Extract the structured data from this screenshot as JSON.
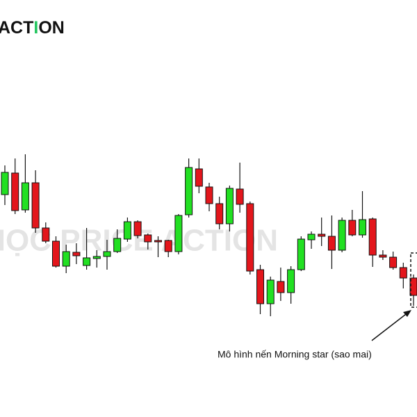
{
  "logo": {
    "parts": [
      "ACT",
      "I",
      "ON"
    ]
  },
  "watermark": "HỌC PRICE ACTION",
  "chart_data": {
    "type": "candlestick",
    "annotation": "Mô hình nến Morning star (sao mai)",
    "up_color": "#22e022",
    "down_color": "#e3161c",
    "open": [
      320,
      351,
      298,
      337,
      272,
      253,
      217,
      237,
      218,
      228,
      231,
      238,
      256,
      281,
      262,
      254,
      254,
      238,
      291,
      357,
      331,
      307,
      278,
      328,
      307,
      212,
      163,
      195,
      179,
      212,
      255,
      263,
      260,
      240,
      283,
      262,
      285,
      233,
      230,
      215,
      200
    ],
    "high": [
      362,
      372,
      378,
      355,
      280,
      260,
      248,
      250,
      272,
      240,
      255,
      270,
      287,
      283,
      264,
      260,
      255,
      292,
      372,
      372,
      337,
      317,
      333,
      366,
      310,
      219,
      202,
      215,
      217,
      260,
      267,
      287,
      290,
      287,
      298,
      325,
      287,
      240,
      238,
      222,
      205
    ],
    "low": [
      305,
      292,
      294,
      265,
      250,
      215,
      207,
      220,
      212,
      215,
      212,
      236,
      252,
      257,
      241,
      230,
      230,
      234,
      287,
      322,
      296,
      270,
      267,
      294,
      205,
      148,
      145,
      167,
      163,
      210,
      242,
      246,
      213,
      237,
      260,
      258,
      216,
      226,
      212,
      185,
      160
    ],
    "close": [
      352,
      297,
      337,
      272,
      253,
      217,
      238,
      232,
      229,
      231,
      238,
      257,
      281,
      261,
      252,
      252,
      238,
      290,
      359,
      332,
      307,
      278,
      329,
      306,
      210,
      163,
      197,
      179,
      212,
      256,
      263,
      260,
      240,
      283,
      262,
      284,
      233,
      230,
      215,
      200,
      175
    ]
  }
}
